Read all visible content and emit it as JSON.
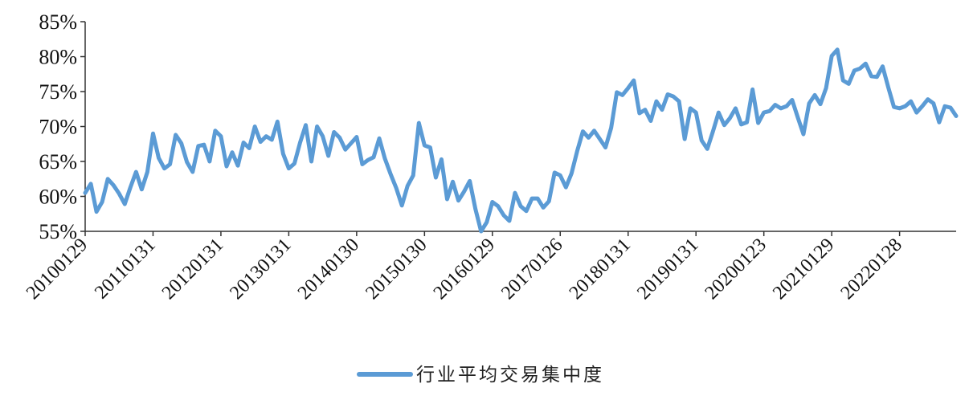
{
  "chart_data": {
    "type": "line",
    "title": "",
    "xlabel": "",
    "ylabel": "",
    "ylim": [
      55,
      85
    ],
    "y_ticks": [
      "55%",
      "60%",
      "65%",
      "70%",
      "75%",
      "80%",
      "85%"
    ],
    "y_tick_values": [
      55,
      60,
      65,
      70,
      75,
      80,
      85
    ],
    "x_tick_labels": [
      "20100129",
      "20110131",
      "20120131",
      "20130131",
      "20140130",
      "20150130",
      "20160129",
      "20170126",
      "20180131",
      "20190131",
      "20200123",
      "20210129",
      "20220128"
    ],
    "grid": false,
    "legend_position": "bottom-center",
    "series": [
      {
        "name": "行业平均交易集中度",
        "color": "#5b9bd5",
        "values": [
          60.5,
          61.8,
          57.8,
          59.2,
          62.5,
          61.6,
          60.4,
          58.9,
          61.3,
          63.5,
          61.0,
          63.5,
          69.0,
          65.5,
          64.0,
          64.6,
          68.8,
          67.6,
          64.9,
          63.5,
          67.2,
          67.4,
          65.0,
          69.4,
          68.6,
          64.3,
          66.3,
          64.4,
          67.7,
          66.9,
          70.0,
          67.8,
          68.6,
          68.1,
          70.7,
          66.1,
          64.0,
          64.7,
          67.7,
          70.2,
          65.0,
          70.0,
          68.6,
          65.8,
          69.2,
          68.4,
          66.7,
          67.6,
          68.5,
          64.6,
          65.2,
          65.6,
          68.3,
          65.4,
          63.2,
          61.2,
          58.7,
          61.5,
          63.0,
          70.5,
          67.3,
          67.0,
          62.7,
          65.3,
          59.6,
          62.1,
          59.4,
          60.7,
          62.2,
          58.2,
          55.0,
          56.3,
          59.2,
          58.6,
          57.3,
          56.5,
          60.5,
          58.6,
          57.9,
          59.7,
          59.7,
          58.4,
          59.3,
          63.4,
          63.0,
          61.3,
          63.3,
          66.5,
          69.3,
          68.4,
          69.4,
          68.2,
          67.0,
          69.8,
          74.9,
          74.5,
          75.5,
          76.6,
          71.9,
          72.4,
          70.8,
          73.6,
          72.4,
          74.6,
          74.3,
          73.6,
          68.2,
          72.6,
          72.0,
          68.0,
          66.8,
          69.3,
          72.0,
          70.2,
          71.2,
          72.6,
          70.3,
          70.6,
          75.3,
          70.5,
          72.0,
          72.2,
          73.1,
          72.6,
          72.9,
          73.8,
          71.3,
          68.9,
          73.3,
          74.5,
          73.2,
          75.5,
          80.1,
          81.0,
          76.6,
          76.1,
          78.0,
          78.3,
          79.0,
          77.2,
          77.1,
          78.6,
          75.6,
          72.8,
          72.6,
          72.9,
          73.6,
          72.0,
          72.9,
          73.9,
          73.3,
          70.6,
          72.9,
          72.7,
          71.5
        ]
      }
    ]
  }
}
